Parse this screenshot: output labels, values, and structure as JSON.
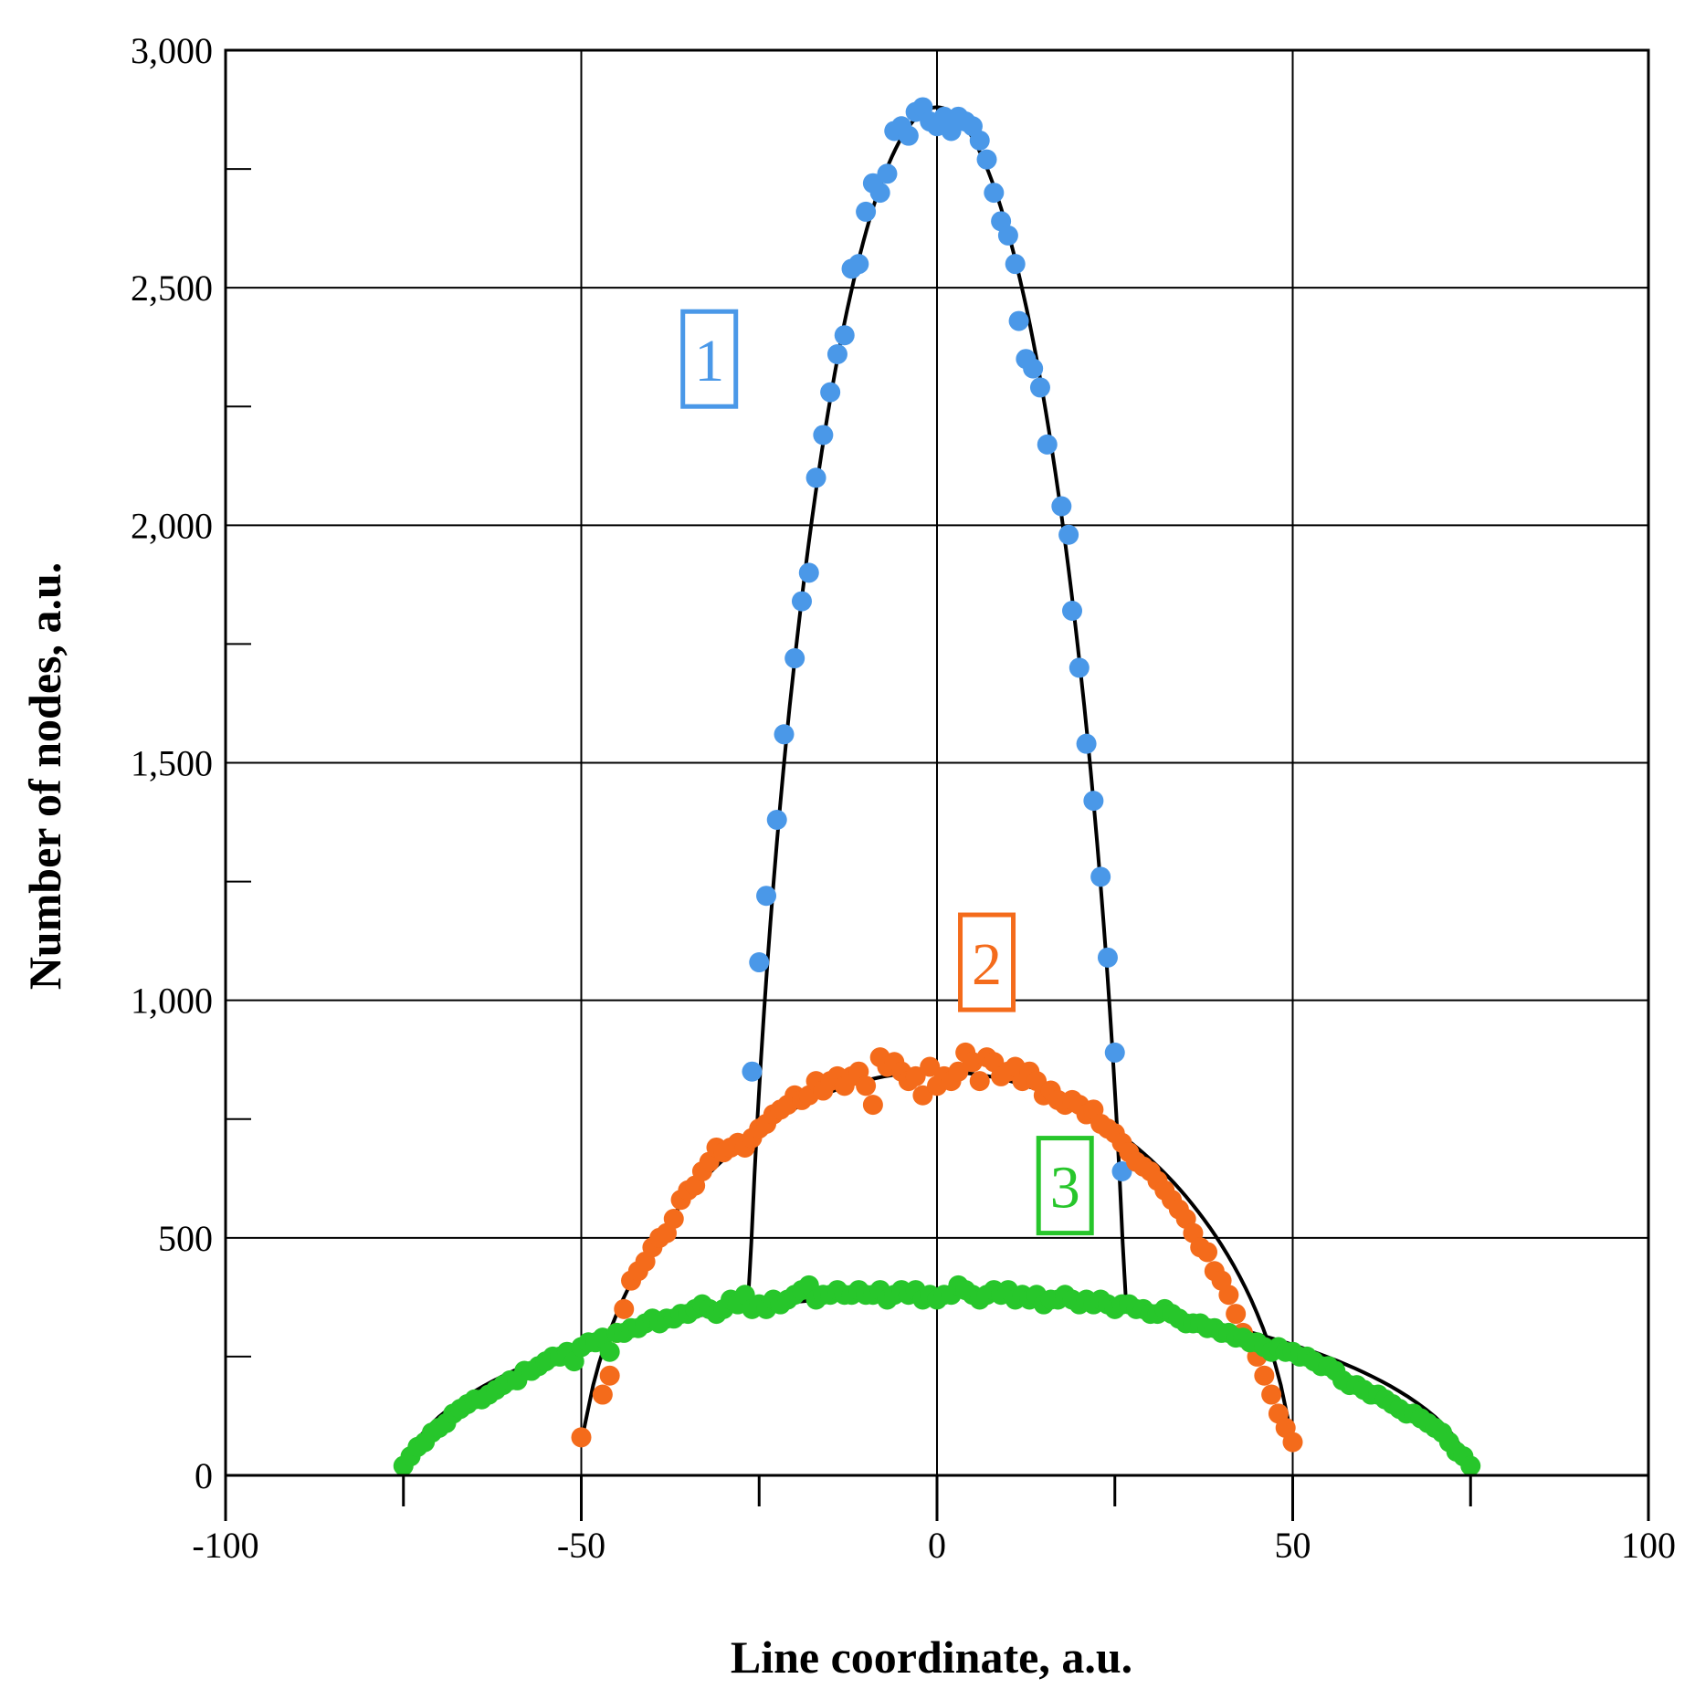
{
  "chart_data": {
    "type": "scatter",
    "title": "",
    "xlabel": "Line coordinate, a.u.",
    "ylabel": "Number of nodes, a.u.",
    "xlim": [
      -100,
      100
    ],
    "ylim": [
      0,
      3000
    ],
    "x_major_ticks": [
      -100,
      -50,
      0,
      50,
      100
    ],
    "x_major_tick_labels": [
      "-100",
      "-50",
      "0",
      "50",
      "100"
    ],
    "y_major_ticks": [
      0,
      500,
      1000,
      1500,
      2000,
      2500,
      3000
    ],
    "y_major_tick_labels": [
      "0",
      "500",
      "1,000",
      "1,500",
      "2,000",
      "2,500",
      "3,000"
    ],
    "grid": true,
    "legend": "none",
    "series": [
      {
        "label": "1",
        "color": "#4a98e8",
        "half_width": 27,
        "peak": 2880,
        "points": [
          [
            -26,
            850
          ],
          [
            -25,
            1080
          ],
          [
            -24,
            1220
          ],
          [
            -22.5,
            1380
          ],
          [
            -21.5,
            1560
          ],
          [
            -20,
            1720
          ],
          [
            -19,
            1840
          ],
          [
            -18,
            1900
          ],
          [
            -17,
            2100
          ],
          [
            -16,
            2190
          ],
          [
            -15,
            2280
          ],
          [
            -14,
            2360
          ],
          [
            -13,
            2400
          ],
          [
            -12,
            2540
          ],
          [
            -11,
            2550
          ],
          [
            -10,
            2660
          ],
          [
            -9,
            2720
          ],
          [
            -8,
            2700
          ],
          [
            -7,
            2740
          ],
          [
            -6,
            2830
          ],
          [
            -5,
            2840
          ],
          [
            -4,
            2820
          ],
          [
            -3,
            2870
          ],
          [
            -2,
            2880
          ],
          [
            -1,
            2850
          ],
          [
            0,
            2840
          ],
          [
            1,
            2860
          ],
          [
            2,
            2830
          ],
          [
            3,
            2860
          ],
          [
            4,
            2850
          ],
          [
            5,
            2840
          ],
          [
            6,
            2810
          ],
          [
            7,
            2770
          ],
          [
            8,
            2700
          ],
          [
            9,
            2640
          ],
          [
            10,
            2610
          ],
          [
            11,
            2550
          ],
          [
            11.5,
            2430
          ],
          [
            12.5,
            2350
          ],
          [
            13.5,
            2330
          ],
          [
            14.5,
            2290
          ],
          [
            15.5,
            2170
          ],
          [
            17.5,
            2040
          ],
          [
            18.5,
            1980
          ],
          [
            19,
            1820
          ],
          [
            20,
            1700
          ],
          [
            21,
            1540
          ],
          [
            22,
            1420
          ],
          [
            23,
            1260
          ],
          [
            24,
            1090
          ],
          [
            25,
            890
          ],
          [
            26,
            640
          ]
        ]
      },
      {
        "label": "2",
        "color": "#f46b1b",
        "half_width": 50,
        "peak": 850,
        "points": [
          [
            -50,
            80
          ],
          [
            -47,
            170
          ],
          [
            -46,
            210
          ],
          [
            -45,
            300
          ],
          [
            -44,
            350
          ],
          [
            -43,
            410
          ],
          [
            -42,
            430
          ],
          [
            -41,
            450
          ],
          [
            -40,
            480
          ],
          [
            -39,
            500
          ],
          [
            -38,
            510
          ],
          [
            -37,
            540
          ],
          [
            -36,
            580
          ],
          [
            -35,
            600
          ],
          [
            -34,
            610
          ],
          [
            -33,
            640
          ],
          [
            -32,
            660
          ],
          [
            -31,
            690
          ],
          [
            -30,
            680
          ],
          [
            -29,
            690
          ],
          [
            -28,
            700
          ],
          [
            -27,
            690
          ],
          [
            -26,
            710
          ],
          [
            -25,
            730
          ],
          [
            -24,
            740
          ],
          [
            -23,
            760
          ],
          [
            -22,
            770
          ],
          [
            -21,
            780
          ],
          [
            -20,
            800
          ],
          [
            -19,
            790
          ],
          [
            -18,
            800
          ],
          [
            -17,
            830
          ],
          [
            -16,
            810
          ],
          [
            -15,
            830
          ],
          [
            -14,
            840
          ],
          [
            -13,
            820
          ],
          [
            -12,
            840
          ],
          [
            -11,
            850
          ],
          [
            -10,
            820
          ],
          [
            -9,
            780
          ],
          [
            -8,
            880
          ],
          [
            -7,
            860
          ],
          [
            -6,
            870
          ],
          [
            -5,
            850
          ],
          [
            -4,
            830
          ],
          [
            -3,
            840
          ],
          [
            -2,
            800
          ],
          [
            -1,
            860
          ],
          [
            0,
            820
          ],
          [
            1,
            840
          ],
          [
            2,
            830
          ],
          [
            3,
            850
          ],
          [
            4,
            890
          ],
          [
            5,
            870
          ],
          [
            6,
            830
          ],
          [
            7,
            880
          ],
          [
            8,
            870
          ],
          [
            9,
            840
          ],
          [
            10,
            850
          ],
          [
            11,
            860
          ],
          [
            12,
            830
          ],
          [
            13,
            850
          ],
          [
            14,
            830
          ],
          [
            15,
            800
          ],
          [
            16,
            810
          ],
          [
            17,
            790
          ],
          [
            18,
            780
          ],
          [
            19,
            790
          ],
          [
            20,
            780
          ],
          [
            21,
            760
          ],
          [
            22,
            770
          ],
          [
            23,
            740
          ],
          [
            24,
            730
          ],
          [
            25,
            720
          ],
          [
            26,
            700
          ],
          [
            27,
            680
          ],
          [
            28,
            660
          ],
          [
            29,
            650
          ],
          [
            30,
            640
          ],
          [
            31,
            620
          ],
          [
            32,
            600
          ],
          [
            33,
            580
          ],
          [
            34,
            560
          ],
          [
            35,
            540
          ],
          [
            36,
            510
          ],
          [
            37,
            480
          ],
          [
            38,
            470
          ],
          [
            39,
            430
          ],
          [
            40,
            410
          ],
          [
            41,
            380
          ],
          [
            42,
            340
          ],
          [
            43,
            300
          ],
          [
            44,
            280
          ],
          [
            45,
            250
          ],
          [
            46,
            210
          ],
          [
            47,
            170
          ],
          [
            48,
            130
          ],
          [
            49,
            100
          ],
          [
            50,
            70
          ]
        ]
      },
      {
        "label": "3",
        "color": "#27c62b",
        "half_width": 75,
        "peak": 380,
        "points": [
          [
            -75,
            20
          ],
          [
            -74,
            40
          ],
          [
            -73,
            60
          ],
          [
            -72,
            70
          ],
          [
            -71,
            90
          ],
          [
            -70,
            100
          ],
          [
            -69,
            110
          ],
          [
            -68,
            130
          ],
          [
            -67,
            140
          ],
          [
            -66,
            150
          ],
          [
            -65,
            160
          ],
          [
            -64,
            160
          ],
          [
            -63,
            170
          ],
          [
            -62,
            180
          ],
          [
            -61,
            190
          ],
          [
            -60,
            200
          ],
          [
            -59,
            200
          ],
          [
            -58,
            220
          ],
          [
            -57,
            220
          ],
          [
            -56,
            230
          ],
          [
            -55,
            240
          ],
          [
            -54,
            250
          ],
          [
            -53,
            250
          ],
          [
            -52,
            260
          ],
          [
            -51,
            240
          ],
          [
            -50,
            270
          ],
          [
            -49,
            280
          ],
          [
            -48,
            280
          ],
          [
            -47,
            290
          ],
          [
            -46,
            260
          ],
          [
            -45,
            300
          ],
          [
            -44,
            300
          ],
          [
            -43,
            310
          ],
          [
            -42,
            310
          ],
          [
            -41,
            320
          ],
          [
            -40,
            330
          ],
          [
            -39,
            320
          ],
          [
            -38,
            330
          ],
          [
            -37,
            330
          ],
          [
            -36,
            340
          ],
          [
            -35,
            340
          ],
          [
            -34,
            350
          ],
          [
            -33,
            360
          ],
          [
            -32,
            350
          ],
          [
            -31,
            340
          ],
          [
            -30,
            350
          ],
          [
            -29,
            370
          ],
          [
            -28,
            360
          ],
          [
            -27,
            380
          ],
          [
            -26,
            350
          ],
          [
            -25,
            360
          ],
          [
            -24,
            350
          ],
          [
            -23,
            370
          ],
          [
            -22,
            360
          ],
          [
            -21,
            370
          ],
          [
            -20,
            380
          ],
          [
            -19,
            390
          ],
          [
            -18,
            400
          ],
          [
            -17,
            370
          ],
          [
            -16,
            380
          ],
          [
            -15,
            380
          ],
          [
            -14,
            390
          ],
          [
            -13,
            380
          ],
          [
            -12,
            380
          ],
          [
            -11,
            390
          ],
          [
            -10,
            380
          ],
          [
            -9,
            380
          ],
          [
            -8,
            390
          ],
          [
            -7,
            370
          ],
          [
            -6,
            380
          ],
          [
            -5,
            390
          ],
          [
            -4,
            380
          ],
          [
            -3,
            390
          ],
          [
            -2,
            370
          ],
          [
            -1,
            380
          ],
          [
            0,
            370
          ],
          [
            1,
            380
          ],
          [
            2,
            380
          ],
          [
            3,
            400
          ],
          [
            4,
            390
          ],
          [
            5,
            380
          ],
          [
            6,
            370
          ],
          [
            7,
            380
          ],
          [
            8,
            390
          ],
          [
            9,
            380
          ],
          [
            10,
            390
          ],
          [
            11,
            370
          ],
          [
            12,
            380
          ],
          [
            13,
            370
          ],
          [
            14,
            380
          ],
          [
            15,
            360
          ],
          [
            16,
            370
          ],
          [
            17,
            370
          ],
          [
            18,
            380
          ],
          [
            19,
            370
          ],
          [
            20,
            360
          ],
          [
            21,
            370
          ],
          [
            22,
            360
          ],
          [
            23,
            370
          ],
          [
            24,
            360
          ],
          [
            25,
            350
          ],
          [
            26,
            360
          ],
          [
            27,
            360
          ],
          [
            28,
            350
          ],
          [
            29,
            350
          ],
          [
            30,
            340
          ],
          [
            31,
            340
          ],
          [
            32,
            350
          ],
          [
            33,
            340
          ],
          [
            34,
            330
          ],
          [
            35,
            320
          ],
          [
            36,
            320
          ],
          [
            37,
            320
          ],
          [
            38,
            310
          ],
          [
            39,
            310
          ],
          [
            40,
            300
          ],
          [
            41,
            300
          ],
          [
            42,
            290
          ],
          [
            43,
            290
          ],
          [
            44,
            280
          ],
          [
            45,
            280
          ],
          [
            46,
            270
          ],
          [
            47,
            260
          ],
          [
            48,
            270
          ],
          [
            49,
            260
          ],
          [
            50,
            260
          ],
          [
            51,
            250
          ],
          [
            52,
            250
          ],
          [
            53,
            240
          ],
          [
            54,
            230
          ],
          [
            55,
            230
          ],
          [
            56,
            220
          ],
          [
            57,
            200
          ],
          [
            58,
            190
          ],
          [
            59,
            190
          ],
          [
            60,
            180
          ],
          [
            61,
            170
          ],
          [
            62,
            170
          ],
          [
            63,
            160
          ],
          [
            64,
            150
          ],
          [
            65,
            140
          ],
          [
            66,
            130
          ],
          [
            67,
            130
          ],
          [
            68,
            120
          ],
          [
            69,
            110
          ],
          [
            70,
            100
          ],
          [
            71,
            90
          ],
          [
            72,
            70
          ],
          [
            73,
            50
          ],
          [
            74,
            40
          ],
          [
            75,
            20
          ]
        ]
      }
    ]
  }
}
